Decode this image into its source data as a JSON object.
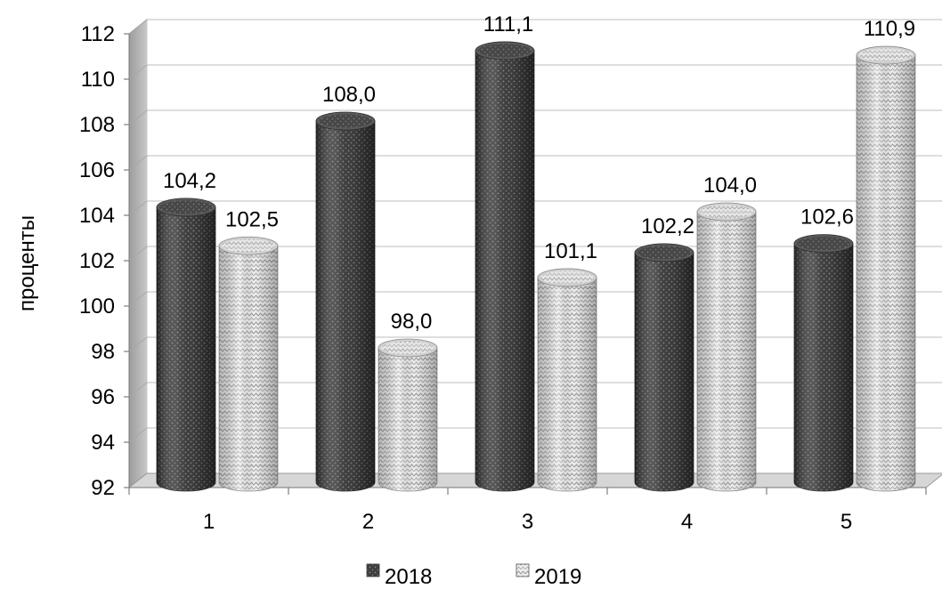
{
  "chart_data": {
    "type": "bar",
    "style": "3d-cylinder",
    "categories": [
      "1",
      "2",
      "3",
      "4",
      "5"
    ],
    "series": [
      {
        "name": "2018",
        "values": [
          104.2,
          108.0,
          111.1,
          102.2,
          102.6
        ],
        "labels": [
          "104,2",
          "108,0",
          "111,1",
          "102,2",
          "102,6"
        ],
        "color": "#4a4a4a",
        "pattern": "dots"
      },
      {
        "name": "2019",
        "values": [
          102.5,
          98.0,
          101.1,
          104.0,
          110.9
        ],
        "labels": [
          "102,5",
          "98,0",
          "101,1",
          "104,0",
          "110,9"
        ],
        "color": "#e6e6e6",
        "pattern": "zigzag"
      }
    ],
    "ylabel": "проценты",
    "ylim": [
      92,
      112
    ],
    "yticks": [
      92,
      94,
      96,
      98,
      100,
      102,
      104,
      106,
      108,
      110,
      112
    ],
    "grid": true,
    "legend_position": "bottom"
  }
}
